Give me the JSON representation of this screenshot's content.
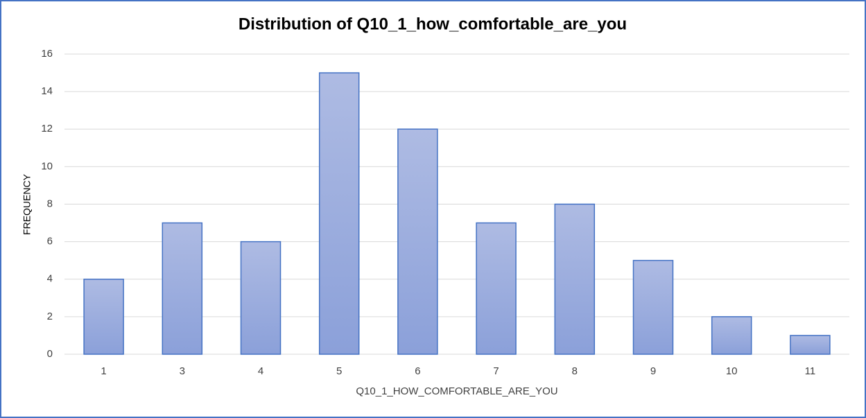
{
  "chart_data": {
    "type": "bar",
    "title": "Distribution  of Q10_1_how_comfortable_are_you",
    "x_label": "Q10_1_HOW_COMFORTABLE_ARE_YOU",
    "y_label": "FREQUENCY",
    "categories": [
      "1",
      "3",
      "4",
      "5",
      "6",
      "7",
      "8",
      "9",
      "10",
      "11"
    ],
    "values": [
      4,
      7,
      6,
      15,
      12,
      7,
      8,
      5,
      2,
      1
    ],
    "color": "#4472c4",
    "ylim": [
      0,
      16
    ],
    "yticks": [
      0,
      2,
      4,
      6,
      8,
      10,
      12,
      14,
      16
    ],
    "grid": true
  }
}
